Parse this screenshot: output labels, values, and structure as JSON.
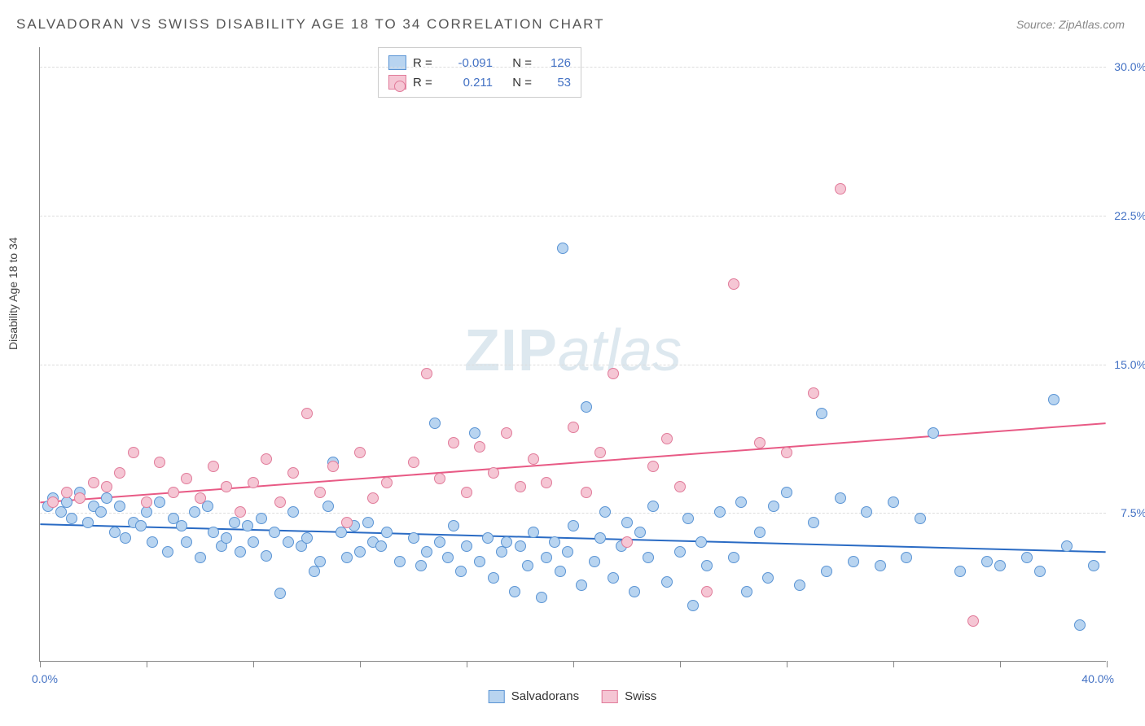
{
  "title": "SALVADORAN VS SWISS DISABILITY AGE 18 TO 34 CORRELATION CHART",
  "source_label": "Source:",
  "source_value": "ZipAtlas.com",
  "yaxis_label": "Disability Age 18 to 34",
  "watermark_zip": "ZIP",
  "watermark_atlas": "atlas",
  "chart": {
    "type": "scatter",
    "xlim": [
      0,
      40
    ],
    "ylim": [
      0,
      31
    ],
    "yticks": [
      7.5,
      15.0,
      22.5,
      30.0
    ],
    "ytick_labels": [
      "7.5%",
      "15.0%",
      "22.5%",
      "30.0%"
    ],
    "xticks": [
      0,
      4,
      8,
      12,
      16,
      20,
      24,
      28,
      32,
      36,
      40
    ],
    "xaxis_min_label": "0.0%",
    "xaxis_max_label": "40.0%",
    "background_color": "#ffffff",
    "grid_color": "#dddddd",
    "marker_radius": 7,
    "series": [
      {
        "name": "Salvadorans",
        "fill": "#b8d4f0",
        "stroke": "#5a94d4",
        "trend_color": "#2a6bc4",
        "trend_y_at_x0": 6.9,
        "trend_y_at_xmax": 5.5,
        "R": "-0.091",
        "N": "126",
        "points": [
          [
            0.3,
            7.8
          ],
          [
            0.5,
            8.2
          ],
          [
            0.8,
            7.5
          ],
          [
            1.0,
            8.0
          ],
          [
            1.2,
            7.2
          ],
          [
            1.5,
            8.5
          ],
          [
            1.8,
            7.0
          ],
          [
            2.0,
            7.8
          ],
          [
            2.3,
            7.5
          ],
          [
            2.5,
            8.2
          ],
          [
            2.8,
            6.5
          ],
          [
            3.0,
            7.8
          ],
          [
            3.2,
            6.2
          ],
          [
            3.5,
            7.0
          ],
          [
            3.8,
            6.8
          ],
          [
            4.0,
            7.5
          ],
          [
            4.2,
            6.0
          ],
          [
            4.5,
            8.0
          ],
          [
            4.8,
            5.5
          ],
          [
            5.0,
            7.2
          ],
          [
            5.3,
            6.8
          ],
          [
            5.5,
            6.0
          ],
          [
            5.8,
            7.5
          ],
          [
            6.0,
            5.2
          ],
          [
            6.3,
            7.8
          ],
          [
            6.5,
            6.5
          ],
          [
            6.8,
            5.8
          ],
          [
            7.0,
            6.2
          ],
          [
            7.3,
            7.0
          ],
          [
            7.5,
            5.5
          ],
          [
            7.8,
            6.8
          ],
          [
            8.0,
            6.0
          ],
          [
            8.3,
            7.2
          ],
          [
            8.5,
            5.3
          ],
          [
            8.8,
            6.5
          ],
          [
            9.0,
            3.4
          ],
          [
            9.3,
            6.0
          ],
          [
            9.5,
            7.5
          ],
          [
            9.8,
            5.8
          ],
          [
            10.0,
            6.2
          ],
          [
            10.3,
            4.5
          ],
          [
            10.5,
            5.0
          ],
          [
            10.8,
            7.8
          ],
          [
            11.0,
            10.0
          ],
          [
            11.3,
            6.5
          ],
          [
            11.5,
            5.2
          ],
          [
            11.8,
            6.8
          ],
          [
            12.0,
            5.5
          ],
          [
            12.3,
            7.0
          ],
          [
            12.5,
            6.0
          ],
          [
            12.8,
            5.8
          ],
          [
            13.0,
            6.5
          ],
          [
            13.5,
            5.0
          ],
          [
            14.0,
            6.2
          ],
          [
            14.3,
            4.8
          ],
          [
            14.5,
            5.5
          ],
          [
            14.8,
            12.0
          ],
          [
            15.0,
            6.0
          ],
          [
            15.3,
            5.2
          ],
          [
            15.5,
            6.8
          ],
          [
            15.8,
            4.5
          ],
          [
            16.0,
            5.8
          ],
          [
            16.3,
            11.5
          ],
          [
            16.5,
            5.0
          ],
          [
            16.8,
            6.2
          ],
          [
            17.0,
            4.2
          ],
          [
            17.3,
            5.5
          ],
          [
            17.5,
            6.0
          ],
          [
            17.8,
            3.5
          ],
          [
            18.0,
            5.8
          ],
          [
            18.3,
            4.8
          ],
          [
            18.5,
            6.5
          ],
          [
            18.8,
            3.2
          ],
          [
            19.0,
            5.2
          ],
          [
            19.3,
            6.0
          ],
          [
            19.5,
            4.5
          ],
          [
            19.6,
            20.8
          ],
          [
            19.8,
            5.5
          ],
          [
            20.0,
            6.8
          ],
          [
            20.3,
            3.8
          ],
          [
            20.5,
            12.8
          ],
          [
            20.8,
            5.0
          ],
          [
            21.0,
            6.2
          ],
          [
            21.2,
            7.5
          ],
          [
            21.5,
            4.2
          ],
          [
            21.8,
            5.8
          ],
          [
            22.0,
            7.0
          ],
          [
            22.3,
            3.5
          ],
          [
            22.5,
            6.5
          ],
          [
            22.8,
            5.2
          ],
          [
            23.0,
            7.8
          ],
          [
            23.5,
            4.0
          ],
          [
            24.0,
            5.5
          ],
          [
            24.3,
            7.2
          ],
          [
            24.5,
            2.8
          ],
          [
            24.8,
            6.0
          ],
          [
            25.0,
            4.8
          ],
          [
            25.5,
            7.5
          ],
          [
            26.0,
            5.2
          ],
          [
            26.3,
            8.0
          ],
          [
            26.5,
            3.5
          ],
          [
            27.0,
            6.5
          ],
          [
            27.3,
            4.2
          ],
          [
            27.5,
            7.8
          ],
          [
            28.0,
            8.5
          ],
          [
            28.5,
            3.8
          ],
          [
            29.0,
            7.0
          ],
          [
            29.3,
            12.5
          ],
          [
            29.5,
            4.5
          ],
          [
            30.0,
            8.2
          ],
          [
            30.5,
            5.0
          ],
          [
            31.0,
            7.5
          ],
          [
            31.5,
            4.8
          ],
          [
            32.0,
            8.0
          ],
          [
            32.5,
            5.2
          ],
          [
            33.0,
            7.2
          ],
          [
            33.5,
            11.5
          ],
          [
            34.5,
            4.5
          ],
          [
            35.5,
            5.0
          ],
          [
            36.0,
            4.8
          ],
          [
            37.0,
            5.2
          ],
          [
            37.5,
            4.5
          ],
          [
            38.0,
            13.2
          ],
          [
            38.5,
            5.8
          ],
          [
            39.0,
            1.8
          ],
          [
            39.5,
            4.8
          ]
        ]
      },
      {
        "name": "Swiss",
        "fill": "#f5c6d4",
        "stroke": "#e17b9a",
        "trend_color": "#e85a85",
        "trend_y_at_x0": 8.0,
        "trend_y_at_xmax": 12.0,
        "R": "0.211",
        "N": "53",
        "points": [
          [
            0.5,
            8.0
          ],
          [
            1.0,
            8.5
          ],
          [
            1.5,
            8.2
          ],
          [
            2.0,
            9.0
          ],
          [
            2.5,
            8.8
          ],
          [
            3.0,
            9.5
          ],
          [
            3.5,
            10.5
          ],
          [
            4.0,
            8.0
          ],
          [
            4.5,
            10.0
          ],
          [
            5.0,
            8.5
          ],
          [
            5.5,
            9.2
          ],
          [
            6.0,
            8.2
          ],
          [
            6.5,
            9.8
          ],
          [
            7.0,
            8.8
          ],
          [
            7.5,
            7.5
          ],
          [
            8.0,
            9.0
          ],
          [
            8.5,
            10.2
          ],
          [
            9.0,
            8.0
          ],
          [
            9.5,
            9.5
          ],
          [
            10.0,
            12.5
          ],
          [
            10.5,
            8.5
          ],
          [
            11.0,
            9.8
          ],
          [
            11.5,
            7.0
          ],
          [
            12.0,
            10.5
          ],
          [
            12.5,
            8.2
          ],
          [
            13.0,
            9.0
          ],
          [
            13.5,
            29.0
          ],
          [
            14.0,
            10.0
          ],
          [
            14.5,
            14.5
          ],
          [
            15.0,
            9.2
          ],
          [
            15.5,
            11.0
          ],
          [
            16.0,
            8.5
          ],
          [
            16.5,
            10.8
          ],
          [
            17.0,
            9.5
          ],
          [
            17.5,
            11.5
          ],
          [
            18.0,
            8.8
          ],
          [
            18.5,
            10.2
          ],
          [
            19.0,
            9.0
          ],
          [
            20.0,
            11.8
          ],
          [
            20.5,
            8.5
          ],
          [
            21.0,
            10.5
          ],
          [
            21.5,
            14.5
          ],
          [
            22.0,
            6.0
          ],
          [
            23.0,
            9.8
          ],
          [
            23.5,
            11.2
          ],
          [
            24.0,
            8.8
          ],
          [
            25.0,
            3.5
          ],
          [
            26.0,
            19.0
          ],
          [
            27.0,
            11.0
          ],
          [
            28.0,
            10.5
          ],
          [
            29.0,
            13.5
          ],
          [
            30.0,
            23.8
          ],
          [
            35.0,
            2.0
          ]
        ]
      }
    ]
  }
}
